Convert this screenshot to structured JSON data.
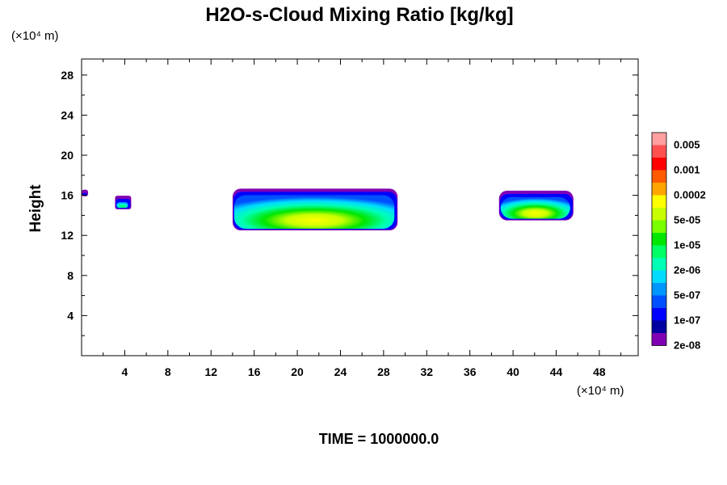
{
  "chart_data": {
    "type": "heatmap",
    "title": "H2O-s-Cloud Mixing Ratio [kg/kg]",
    "ylabel": "Height",
    "x_unit": "(×10⁴ m)",
    "y_unit": "(×10⁴ m)",
    "xlim": [
      0,
      51.6
    ],
    "ylim": [
      0,
      29.6
    ],
    "x_ticks": [
      4,
      8,
      12,
      16,
      20,
      24,
      28,
      32,
      36,
      40,
      44,
      48
    ],
    "y_ticks": [
      4,
      8,
      12,
      16,
      20,
      24,
      28
    ],
    "colorbar": {
      "labels": [
        "0.005",
        "0.001",
        "0.0002",
        "5e-05",
        "1e-05",
        "2e-06",
        "5e-07",
        "1e-07",
        "2e-08"
      ],
      "colors": [
        "#ffa0a0",
        "#ff5050",
        "#ff0000",
        "#ff5a00",
        "#ffa500",
        "#ffff00",
        "#c8ff00",
        "#78ff00",
        "#00e600",
        "#00ff64",
        "#00ffb4",
        "#00dcff",
        "#0096ff",
        "#0050ff",
        "#0000ff",
        "#0000a0",
        "#8000b4"
      ]
    },
    "clouds": [
      {
        "x0": 14.0,
        "x1": 29.3,
        "y0": 12.5,
        "y1": 16.5
      },
      {
        "x0": 38.7,
        "x1": 45.6,
        "y0": 13.5,
        "y1": 16.3
      },
      {
        "x0": 3.1,
        "x1": 4.6,
        "y0": 14.6,
        "y1": 15.8
      },
      {
        "x0": 0.0,
        "x1": 0.6,
        "y0": 15.9,
        "y1": 16.4
      }
    ],
    "footer": "TIME = 1000000.0"
  }
}
